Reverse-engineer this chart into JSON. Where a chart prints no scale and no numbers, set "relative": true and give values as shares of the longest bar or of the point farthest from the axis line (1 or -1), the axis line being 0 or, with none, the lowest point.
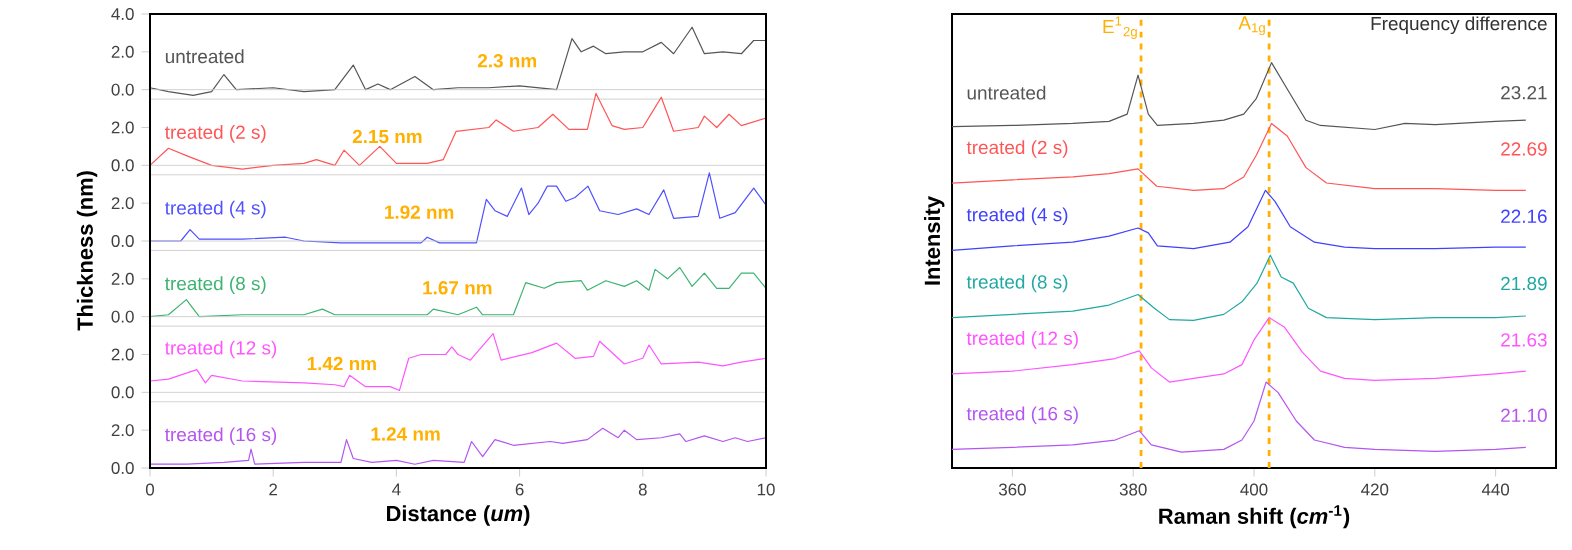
{
  "chart_data": [
    {
      "type": "line",
      "xlim": [
        0,
        10
      ],
      "ylim": [
        -0.5,
        4.0
      ],
      "yticks": [
        {
          "value": 0,
          "label": "0.0"
        },
        {
          "value": 2,
          "label": "2.0"
        },
        {
          "value": 4,
          "label": "4.0"
        }
      ],
      "tick_labels": "y",
      "legend": false,
      "marker": "none",
      "line_style": "solid",
      "series": [
        {
          "name": "untreated",
          "color": "#555555",
          "x": [
            0,
            0.3,
            0.7,
            1.0,
            1.2,
            1.4,
            2.0,
            2.5,
            3.0,
            3.3,
            3.5,
            3.7,
            3.9,
            4.3,
            4.6,
            5.0,
            5.5,
            6.0,
            6.6,
            6.85,
            7.0,
            7.2,
            7.4,
            7.7,
            8.0,
            8.3,
            8.5,
            8.8,
            9.0,
            9.3,
            9.6,
            9.8,
            10
          ],
          "values": [
            0.1,
            -0.1,
            -0.3,
            -0.1,
            0.8,
            0.0,
            0.1,
            -0.1,
            0.0,
            1.3,
            0.0,
            0.3,
            0.0,
            0.7,
            0.0,
            0.1,
            0.1,
            0.2,
            0.0,
            2.7,
            2.0,
            2.3,
            1.9,
            2.0,
            2.0,
            2.5,
            1.9,
            3.3,
            1.9,
            2.0,
            1.9,
            2.6,
            2.6
          ]
        }
      ],
      "annotations": [
        "2.3 nm"
      ]
    },
    {
      "type": "line",
      "xlim": [
        0,
        10
      ],
      "ylim": [
        -0.5,
        4.0
      ],
      "yticks": [
        {
          "value": 0,
          "label": "0.0"
        },
        {
          "value": 2,
          "label": "2.0"
        }
      ],
      "tick_labels": "y",
      "legend": false,
      "marker": "none",
      "line_style": "solid",
      "series": [
        {
          "name": "treated (2 s)",
          "color": "#ff5555",
          "x": [
            0,
            0.3,
            0.6,
            1.0,
            1.5,
            2.0,
            2.5,
            2.7,
            3.0,
            3.15,
            3.4,
            3.73,
            4.0,
            4.5,
            4.76,
            4.97,
            5.5,
            5.62,
            5.9,
            6.3,
            6.54,
            6.8,
            7.1,
            7.24,
            7.5,
            7.7,
            8.0,
            8.15,
            8.3,
            8.5,
            8.9,
            9.0,
            9.2,
            9.4,
            9.6,
            10
          ],
          "values": [
            0.0,
            0.9,
            0.5,
            0.0,
            -0.2,
            0.0,
            0.1,
            0.3,
            0.0,
            0.8,
            0.0,
            1.0,
            0.1,
            0.1,
            0.3,
            1.8,
            2.0,
            2.4,
            1.8,
            2.0,
            2.7,
            1.9,
            1.9,
            3.8,
            2.1,
            1.9,
            2.0,
            2.8,
            3.6,
            1.8,
            2.0,
            2.6,
            2.0,
            2.7,
            2.1,
            2.5
          ]
        }
      ],
      "annotations": [
        "2.15 nm"
      ]
    },
    {
      "type": "line",
      "xlim": [
        0,
        10
      ],
      "ylim": [
        -0.5,
        4.0
      ],
      "yticks": [
        {
          "value": 0,
          "label": "0.0"
        },
        {
          "value": 2,
          "label": "2.0"
        }
      ],
      "tick_labels": "y",
      "ylabel": "Thickness (nm)",
      "legend": false,
      "marker": "none",
      "line_style": "solid",
      "series": [
        {
          "name": "treated (4 s)",
          "color": "#5050ff",
          "x": [
            0,
            0.5,
            0.65,
            0.8,
            1.5,
            2.2,
            2.5,
            3.1,
            4.4,
            4.5,
            4.7,
            5.3,
            5.46,
            5.6,
            5.8,
            6.03,
            6.15,
            6.3,
            6.45,
            6.6,
            6.75,
            6.9,
            7.11,
            7.3,
            7.6,
            7.9,
            8.1,
            8.34,
            8.5,
            8.9,
            9.08,
            9.25,
            9.5,
            9.8,
            10
          ],
          "values": [
            0.0,
            0.0,
            0.6,
            0.1,
            0.1,
            0.2,
            0.0,
            -0.1,
            -0.1,
            0.2,
            -0.1,
            -0.1,
            2.2,
            1.6,
            1.3,
            2.8,
            1.4,
            2.0,
            2.9,
            2.9,
            2.1,
            2.3,
            2.9,
            1.6,
            1.4,
            1.7,
            1.4,
            2.7,
            1.2,
            1.3,
            3.6,
            1.2,
            1.5,
            2.8,
            1.9
          ]
        }
      ],
      "annotations": [
        "1.92 nm"
      ]
    },
    {
      "type": "line",
      "xlim": [
        0,
        10
      ],
      "ylim": [
        -0.5,
        4.0
      ],
      "yticks": [
        {
          "value": 0,
          "label": "0.0"
        },
        {
          "value": 2,
          "label": "2.0"
        }
      ],
      "tick_labels": "y",
      "legend": false,
      "marker": "none",
      "line_style": "solid",
      "series": [
        {
          "name": "treated (8 s)",
          "color": "#3cb371",
          "x": [
            0,
            0.3,
            0.59,
            0.8,
            1.5,
            2.5,
            2.8,
            3.0,
            4.5,
            4.6,
            5.0,
            5.3,
            5.4,
            5.9,
            6.1,
            6.4,
            6.6,
            7.0,
            7.1,
            7.4,
            7.7,
            7.9,
            8.1,
            8.2,
            8.4,
            8.6,
            8.8,
            9.0,
            9.2,
            9.4,
            9.6,
            9.8,
            10
          ],
          "values": [
            0.0,
            0.1,
            0.9,
            0.0,
            0.1,
            0.1,
            0.4,
            0.1,
            0.1,
            0.4,
            0.1,
            0.5,
            0.1,
            0.1,
            1.8,
            1.5,
            1.8,
            1.9,
            1.4,
            1.9,
            1.6,
            1.9,
            1.4,
            2.5,
            2.0,
            2.6,
            1.6,
            2.3,
            1.5,
            1.5,
            2.3,
            2.3,
            1.5
          ]
        }
      ],
      "annotations": [
        "1.67 nm"
      ]
    },
    {
      "type": "line",
      "xlim": [
        0,
        10
      ],
      "ylim": [
        -0.5,
        4.0
      ],
      "yticks": [
        {
          "value": 0,
          "label": "0.0"
        },
        {
          "value": 2,
          "label": "2.0"
        }
      ],
      "tick_labels": "y",
      "legend": false,
      "marker": "none",
      "line_style": "solid",
      "series": [
        {
          "name": "treated (12 s)",
          "color": "#ff55ff",
          "x": [
            0,
            0.3,
            0.76,
            0.9,
            1.0,
            1.5,
            2.5,
            3.0,
            3.15,
            3.24,
            3.5,
            3.9,
            4.05,
            4.2,
            4.4,
            4.8,
            4.9,
            5.0,
            5.2,
            5.57,
            5.7,
            6.2,
            6.6,
            6.9,
            7.2,
            7.3,
            7.7,
            8.0,
            8.1,
            8.3,
            8.9,
            9.3,
            9.6,
            10
          ],
          "values": [
            0.6,
            0.7,
            1.2,
            0.5,
            0.9,
            0.6,
            0.5,
            0.4,
            0.3,
            0.9,
            0.3,
            0.3,
            0.1,
            1.8,
            2.0,
            2.0,
            2.4,
            2.0,
            1.7,
            3.1,
            1.7,
            2.1,
            2.6,
            1.8,
            1.9,
            2.7,
            1.5,
            1.8,
            2.5,
            1.5,
            1.6,
            1.4,
            1.6,
            1.8
          ]
        }
      ],
      "annotations": [
        "1.42 nm"
      ]
    },
    {
      "type": "line",
      "xlabel": "Distance (*um*)",
      "xlim": [
        0,
        10
      ],
      "xticks": [
        0,
        2,
        4,
        6,
        8,
        10
      ],
      "ylim": [
        0,
        4.0
      ],
      "yticks": [
        {
          "value": 0,
          "label": "0.0"
        },
        {
          "value": 2,
          "label": "2.0"
        }
      ],
      "legend": false,
      "marker": "none",
      "line_style": "solid",
      "series": [
        {
          "name": "treated (16 s)",
          "color": "#b455f0",
          "x": [
            0,
            0.6,
            1.2,
            1.6,
            1.64,
            1.7,
            2.5,
            3.1,
            3.19,
            3.3,
            3.6,
            4.0,
            4.3,
            4.6,
            5.1,
            5.22,
            5.4,
            5.6,
            5.9,
            6.5,
            6.7,
            7.1,
            7.35,
            7.6,
            7.7,
            7.9,
            8.3,
            8.6,
            8.7,
            9.0,
            9.3,
            9.5,
            9.7,
            10
          ],
          "values": [
            0.2,
            0.2,
            0.3,
            0.4,
            1.0,
            0.2,
            0.3,
            0.3,
            1.5,
            0.5,
            0.3,
            0.4,
            0.2,
            0.4,
            0.3,
            1.4,
            0.6,
            1.5,
            1.2,
            1.4,
            1.3,
            1.5,
            2.1,
            1.6,
            2.0,
            1.5,
            1.6,
            1.8,
            1.4,
            1.7,
            1.4,
            1.6,
            1.4,
            1.6
          ]
        }
      ],
      "annotations": [
        "1.24 nm"
      ]
    },
    {
      "type": "line",
      "relative": true,
      "xlabel": "Raman shift (*cm*$^{-1}$)",
      "ylabel": "Intensity",
      "xlim": [
        350,
        450
      ],
      "xticks": [
        360,
        380,
        400,
        420,
        440
      ],
      "legend": false,
      "marker": "none",
      "line_style": "solid",
      "ref_lines": [
        {
          "axis": "x",
          "value": 381.3,
          "label": "E$^{1}$$_{2g}$",
          "color": "#ffb000",
          "line_style": "dashed"
        },
        {
          "axis": "x",
          "value": 402.5,
          "label": "A$_{1g}$",
          "color": "#ffb000",
          "line_style": "dashed"
        }
      ],
      "series": [
        {
          "name": "untreated",
          "color": "#555555",
          "x": [
            350,
            360,
            370,
            376,
            379,
            380.8,
            382.5,
            384,
            390,
            395,
            398.3,
            400.4,
            402.9,
            405.5,
            408.6,
            411,
            420,
            425,
            430,
            440,
            445
          ],
          "values": [
            0.842,
            0.845,
            0.85,
            0.855,
            0.873,
            0.969,
            0.873,
            0.845,
            0.85,
            0.858,
            0.873,
            0.912,
            1.0,
            0.935,
            0.858,
            0.845,
            0.835,
            0.85,
            0.847,
            0.855,
            0.858
          ]
        },
        {
          "name": "treated (2 s)",
          "color": "#ff5555",
          "x": [
            350,
            360,
            370,
            376,
            380.8,
            383.9,
            390,
            395,
            398.3,
            400.4,
            402.9,
            405.5,
            408.6,
            412,
            420,
            430,
            440,
            445
          ],
          "values": [
            0.703,
            0.711,
            0.718,
            0.726,
            0.738,
            0.695,
            0.685,
            0.689,
            0.718,
            0.772,
            0.85,
            0.819,
            0.741,
            0.703,
            0.689,
            0.689,
            0.685,
            0.685
          ]
        },
        {
          "name": "treated (4 s)",
          "color": "#4040ff",
          "x": [
            350,
            360,
            370,
            376,
            380.8,
            382.5,
            384,
            390,
            396,
            399,
            401.9,
            403.5,
            406,
            410,
            415,
            420,
            430,
            440,
            445
          ],
          "values": [
            0.537,
            0.548,
            0.557,
            0.572,
            0.592,
            0.58,
            0.548,
            0.541,
            0.557,
            0.595,
            0.685,
            0.657,
            0.595,
            0.557,
            0.545,
            0.541,
            0.541,
            0.545,
            0.545
          ]
        },
        {
          "name": "treated (8 s)",
          "color": "#20a8a2",
          "x": [
            350,
            360,
            370,
            376,
            380.8,
            383.5,
            386,
            390,
            395,
            398,
            400.5,
            402.7,
            404.5,
            406.5,
            409,
            412,
            420,
            430,
            440,
            445
          ],
          "values": [
            0.371,
            0.379,
            0.387,
            0.402,
            0.428,
            0.394,
            0.366,
            0.364,
            0.379,
            0.41,
            0.456,
            0.525,
            0.471,
            0.456,
            0.394,
            0.371,
            0.366,
            0.371,
            0.371,
            0.375
          ]
        },
        {
          "name": "treated (12 s)",
          "color": "#ff55ff",
          "x": [
            350,
            360,
            370,
            377,
            381,
            383,
            386,
            390,
            395,
            398,
            400,
            402.5,
            405,
            408,
            411,
            415,
            420,
            430,
            440,
            445
          ],
          "values": [
            0.232,
            0.239,
            0.255,
            0.27,
            0.289,
            0.247,
            0.212,
            0.221,
            0.232,
            0.255,
            0.316,
            0.371,
            0.348,
            0.286,
            0.239,
            0.221,
            0.216,
            0.221,
            0.232,
            0.239
          ]
        },
        {
          "name": "treated (16 s)",
          "color": "#b455f0",
          "x": [
            350,
            360,
            370,
            377,
            381,
            383,
            388,
            395,
            398,
            400,
            402,
            404,
            407,
            410,
            415,
            420,
            430,
            440,
            445
          ],
          "values": [
            0.046,
            0.051,
            0.057,
            0.069,
            0.092,
            0.057,
            0.039,
            0.046,
            0.069,
            0.116,
            0.212,
            0.186,
            0.116,
            0.069,
            0.051,
            0.046,
            0.041,
            0.046,
            0.051
          ]
        }
      ],
      "annotations": [
        "Frequency difference",
        "23.21",
        "22.69",
        "22.16",
        "21.89",
        "21.63",
        "21.10"
      ]
    }
  ]
}
